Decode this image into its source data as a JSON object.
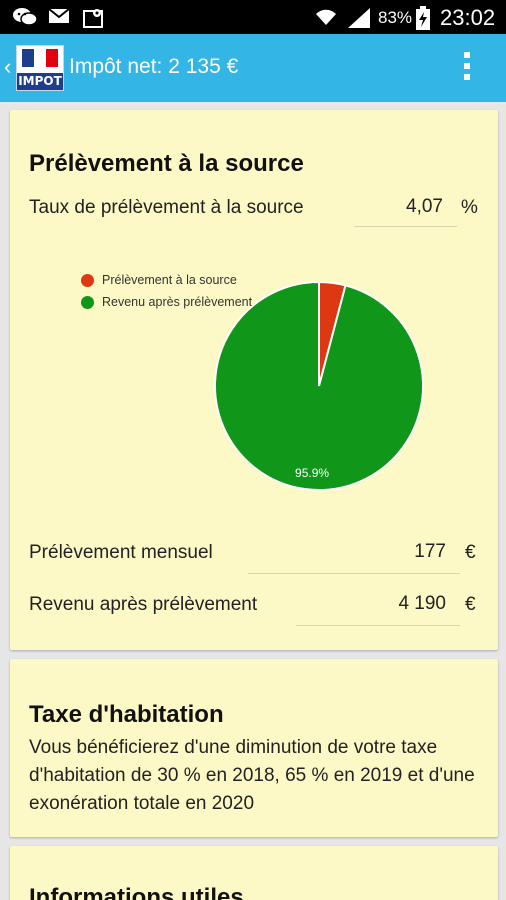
{
  "status_bar": {
    "battery": "83%",
    "time": "23:02"
  },
  "app_bar": {
    "title": "Impôt net: 2 135 €",
    "logo_text": "IMPOT"
  },
  "source_card": {
    "heading": "Prélèvement à la source",
    "rate_label": "Taux de prélèvement à la source",
    "rate_value": "4,07",
    "rate_unit": "%",
    "monthly_label": "Prélèvement mensuel",
    "monthly_value": "177",
    "monthly_unit": "€",
    "net_income_label": "Revenu après prélèvement",
    "net_income_value": "4 190",
    "net_income_unit": "€"
  },
  "chart_data": {
    "type": "pie",
    "labels": [
      "Prélèvement à la source",
      "Revenu après prélèvement"
    ],
    "values": [
      4.1,
      95.9
    ],
    "colors": [
      "#dc3912",
      "#109618"
    ],
    "slice_labels": [
      "",
      "95.9%"
    ],
    "legend_position": "left"
  },
  "habitation_card": {
    "heading": "Taxe d'habitation",
    "text": "Vous bénéficierez d'une diminution de votre taxe d'habitation de 30 % en 2018, 65 % en 2019 et d'une exonération totale en 2020"
  },
  "info_card": {
    "heading": "Informations utiles"
  }
}
